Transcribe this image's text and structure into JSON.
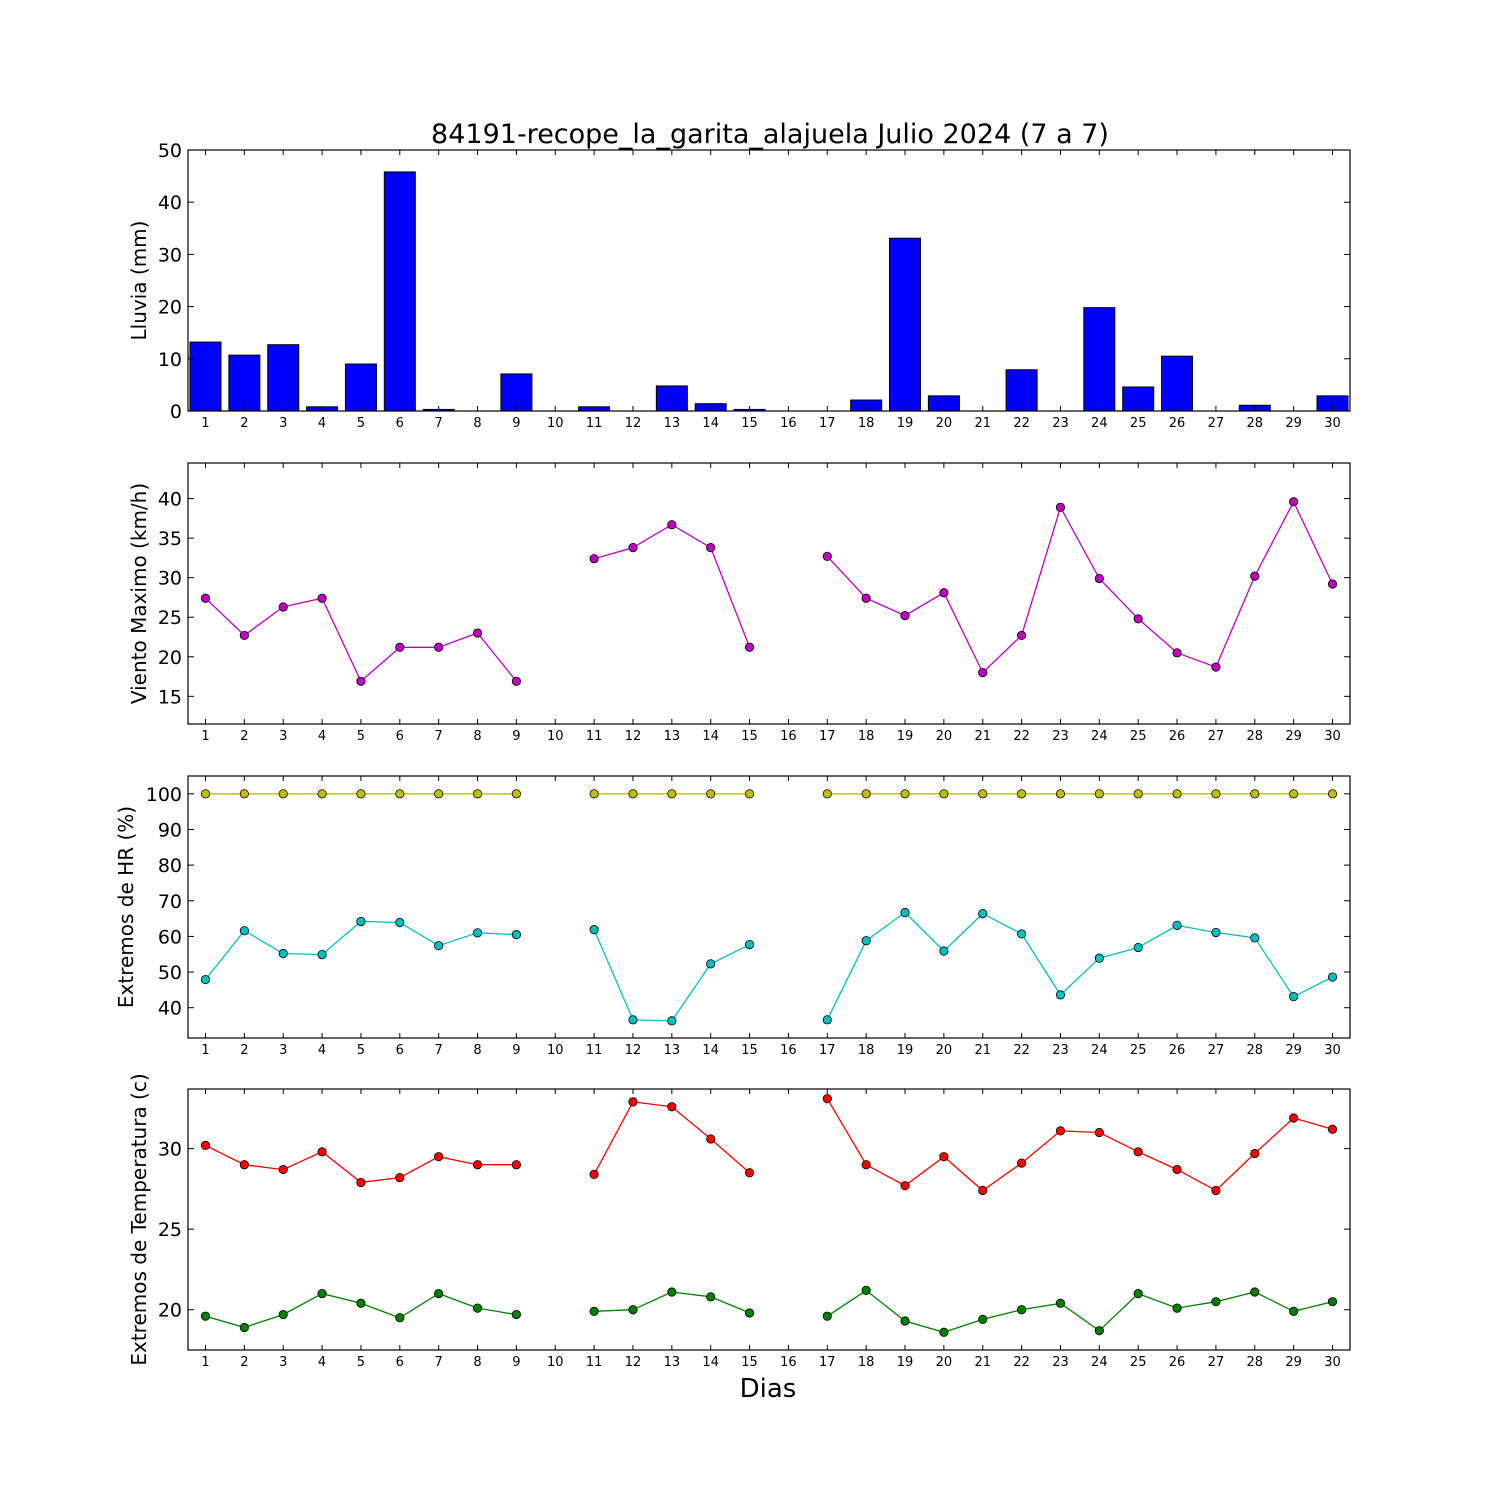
{
  "title": "84191-recope_la_garita_alajuela Julio 2024  (7 a 7)",
  "xlabel": "Dias",
  "chart_data": [
    {
      "type": "bar",
      "ylabel": "Lluvia (mm)",
      "ylim": [
        0,
        50
      ],
      "yticks": [
        0,
        10,
        20,
        30,
        40,
        50
      ],
      "categories": [
        1,
        2,
        3,
        4,
        5,
        6,
        7,
        8,
        9,
        10,
        11,
        12,
        13,
        14,
        15,
        16,
        17,
        18,
        19,
        20,
        21,
        22,
        23,
        24,
        25,
        26,
        27,
        28,
        29,
        30
      ],
      "values": [
        13.2,
        10.7,
        12.7,
        0.8,
        9.0,
        45.8,
        0.3,
        0,
        7.1,
        0,
        0.8,
        0,
        4.8,
        1.4,
        0.3,
        0,
        0,
        2.1,
        33.1,
        2.9,
        0,
        7.9,
        0,
        19.8,
        4.6,
        10.5,
        0,
        1.1,
        0,
        2.9
      ],
      "color": "#0000ff"
    },
    {
      "type": "line",
      "ylabel": "Viento Maximo (km/h)",
      "ylim": [
        11.5,
        44.5
      ],
      "yticks": [
        15,
        20,
        25,
        30,
        35,
        40
      ],
      "x": [
        1,
        2,
        3,
        4,
        5,
        6,
        7,
        8,
        9,
        10,
        11,
        12,
        13,
        14,
        15,
        16,
        17,
        18,
        19,
        20,
        21,
        22,
        23,
        24,
        25,
        26,
        27,
        28,
        29,
        30
      ],
      "series": [
        {
          "color": "#bf00bf",
          "values": [
            27.4,
            22.7,
            26.3,
            27.4,
            16.9,
            21.2,
            21.2,
            23.0,
            16.9,
            null,
            32.4,
            33.8,
            36.7,
            33.8,
            21.2,
            null,
            32.7,
            27.4,
            25.2,
            28.1,
            18.0,
            22.7,
            38.9,
            29.9,
            24.8,
            20.5,
            18.7,
            30.2,
            39.6,
            29.2
          ]
        }
      ]
    },
    {
      "type": "line",
      "ylabel": "Extremos de HR (%)",
      "ylim": [
        31.5,
        105
      ],
      "yticks": [
        40,
        50,
        60,
        70,
        80,
        90,
        100
      ],
      "x": [
        1,
        2,
        3,
        4,
        5,
        6,
        7,
        8,
        9,
        10,
        11,
        12,
        13,
        14,
        15,
        16,
        17,
        18,
        19,
        20,
        21,
        22,
        23,
        24,
        25,
        26,
        27,
        28,
        29,
        30
      ],
      "series": [
        {
          "color": "#bfbf00",
          "values": [
            100,
            100,
            100,
            100,
            100,
            100,
            100,
            100,
            100,
            null,
            100,
            100,
            100,
            100,
            100,
            null,
            100,
            100,
            100,
            100,
            100,
            100,
            100,
            100,
            100,
            100,
            100,
            100,
            100,
            100
          ]
        },
        {
          "color": "#00bfbf",
          "values": [
            47.9,
            61.6,
            55.2,
            54.9,
            64.2,
            63.9,
            57.4,
            61.0,
            60.5,
            null,
            61.9,
            36.6,
            36.3,
            52.3,
            57.7,
            null,
            36.6,
            58.8,
            66.7,
            55.9,
            66.4,
            60.7,
            43.6,
            53.9,
            56.9,
            63.1,
            61.1,
            59.6,
            43.1,
            48.6
          ]
        }
      ]
    },
    {
      "type": "line",
      "ylabel": "Extremos de Temperatura (c)",
      "ylim": [
        17.5,
        33.7
      ],
      "yticks": [
        20,
        25,
        30
      ],
      "x": [
        1,
        2,
        3,
        4,
        5,
        6,
        7,
        8,
        9,
        10,
        11,
        12,
        13,
        14,
        15,
        16,
        17,
        18,
        19,
        20,
        21,
        22,
        23,
        24,
        25,
        26,
        27,
        28,
        29,
        30
      ],
      "series": [
        {
          "color": "#ff0000",
          "values": [
            30.2,
            29.0,
            28.7,
            29.8,
            27.9,
            28.2,
            29.5,
            29.0,
            29.0,
            null,
            28.4,
            32.9,
            32.6,
            30.6,
            28.5,
            null,
            33.1,
            29.0,
            27.7,
            29.5,
            27.4,
            29.1,
            31.1,
            31.0,
            29.8,
            28.7,
            27.4,
            29.7,
            31.9,
            31.2
          ]
        },
        {
          "color": "#008000",
          "values": [
            19.6,
            18.9,
            19.7,
            21.0,
            20.4,
            19.5,
            21.0,
            20.1,
            19.7,
            null,
            19.9,
            20.0,
            21.1,
            20.8,
            19.8,
            null,
            19.6,
            21.2,
            19.3,
            18.6,
            19.4,
            20.0,
            20.4,
            18.7,
            21.0,
            20.1,
            20.5,
            21.1,
            19.9,
            20.5
          ]
        }
      ]
    }
  ]
}
